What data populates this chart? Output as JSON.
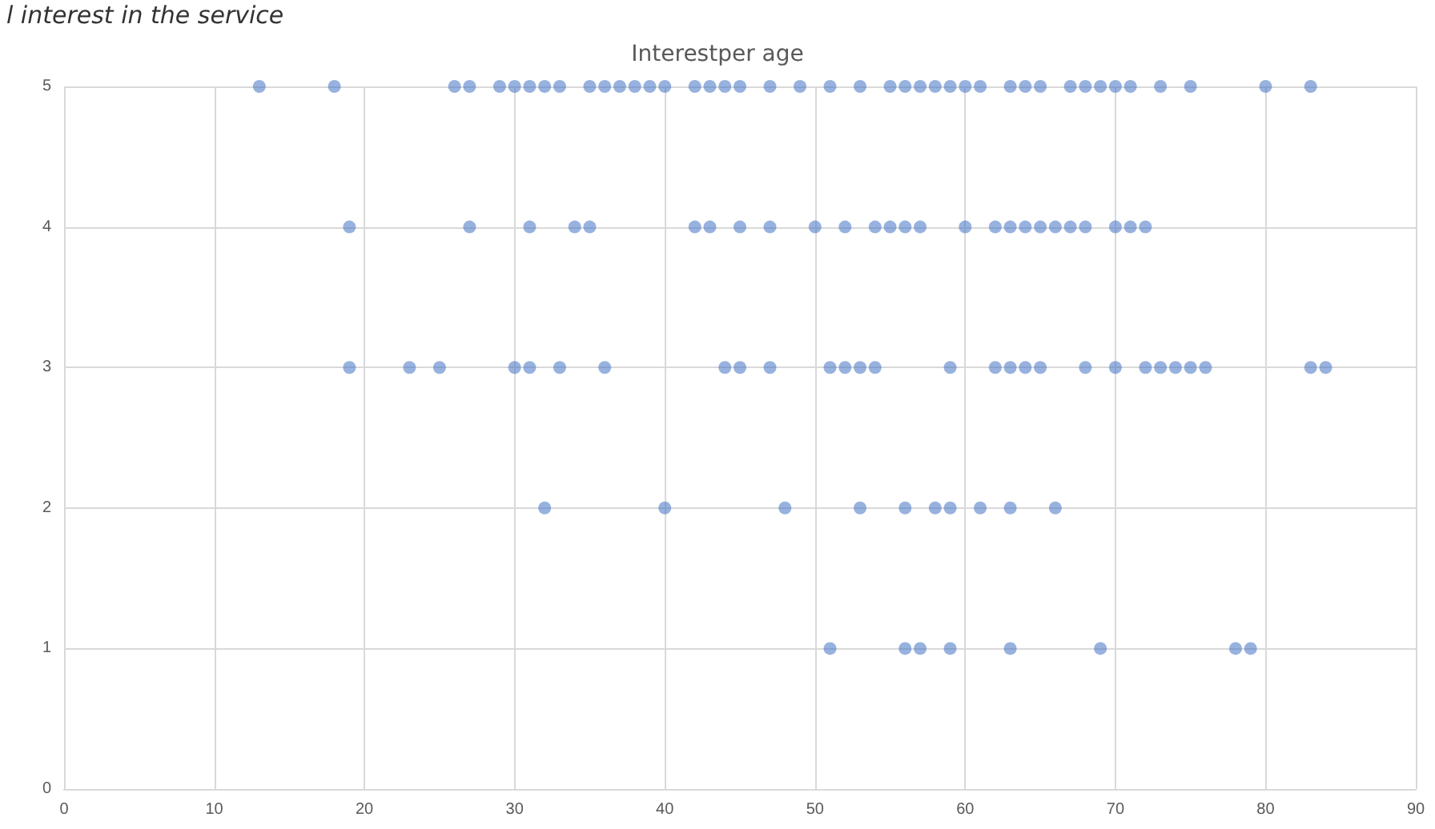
{
  "chart_data": {
    "type": "scatter",
    "title": "Interestper age",
    "annotations": [
      "l interest in the service"
    ],
    "series": [
      {
        "color": "#4472c4",
        "x": [
          13,
          18,
          26,
          27,
          29,
          30,
          31,
          32,
          33,
          35,
          36,
          37,
          38,
          39,
          40,
          42,
          43,
          44,
          45,
          47,
          49,
          51,
          53,
          55,
          56,
          57,
          58,
          59,
          60,
          61,
          63,
          64,
          65,
          67,
          68,
          69,
          70,
          71,
          73,
          75,
          80,
          83
        ],
        "values": [
          5,
          5,
          5,
          5,
          5,
          5,
          5,
          5,
          5,
          5,
          5,
          5,
          5,
          5,
          5,
          5,
          5,
          5,
          5,
          5,
          5,
          5,
          5,
          5,
          5,
          5,
          5,
          5,
          5,
          5,
          5,
          5,
          5,
          5,
          5,
          5,
          5,
          5,
          5,
          5,
          5,
          5
        ]
      },
      {
        "color": "#4472c4",
        "x": [
          19,
          27,
          31,
          34,
          35,
          42,
          43,
          45,
          47,
          50,
          52,
          54,
          55,
          56,
          57,
          60,
          62,
          63,
          64,
          65,
          66,
          67,
          68,
          70,
          71,
          72
        ],
        "values": [
          4,
          4,
          4,
          4,
          4,
          4,
          4,
          4,
          4,
          4,
          4,
          4,
          4,
          4,
          4,
          4,
          4,
          4,
          4,
          4,
          4,
          4,
          4,
          4,
          4,
          4
        ]
      },
      {
        "color": "#4472c4",
        "x": [
          19,
          23,
          25,
          30,
          31,
          33,
          36,
          44,
          45,
          47,
          51,
          52,
          53,
          54,
          59,
          62,
          63,
          64,
          65,
          68,
          70,
          72,
          73,
          74,
          75,
          76,
          83,
          84
        ],
        "values": [
          3,
          3,
          3,
          3,
          3,
          3,
          3,
          3,
          3,
          3,
          3,
          3,
          3,
          3,
          3,
          3,
          3,
          3,
          3,
          3,
          3,
          3,
          3,
          3,
          3,
          3,
          3,
          3
        ]
      },
      {
        "color": "#4472c4",
        "x": [
          32,
          40,
          48,
          53,
          56,
          58,
          59,
          61,
          63,
          66
        ],
        "values": [
          2,
          2,
          2,
          2,
          2,
          2,
          2,
          2,
          2,
          2
        ]
      },
      {
        "color": "#4472c4",
        "x": [
          51,
          56,
          57,
          59,
          63,
          69,
          78,
          79
        ],
        "values": [
          1,
          1,
          1,
          1,
          1,
          1,
          1,
          1
        ]
      }
    ],
    "xlim": [
      0,
      90
    ],
    "xticks": [
      0,
      10,
      20,
      30,
      40,
      50,
      60,
      70,
      80,
      90
    ],
    "ylim": [
      0,
      5
    ],
    "yticks": [
      0,
      1,
      2,
      3,
      4,
      5
    ],
    "grid": true,
    "marker": "circle"
  }
}
